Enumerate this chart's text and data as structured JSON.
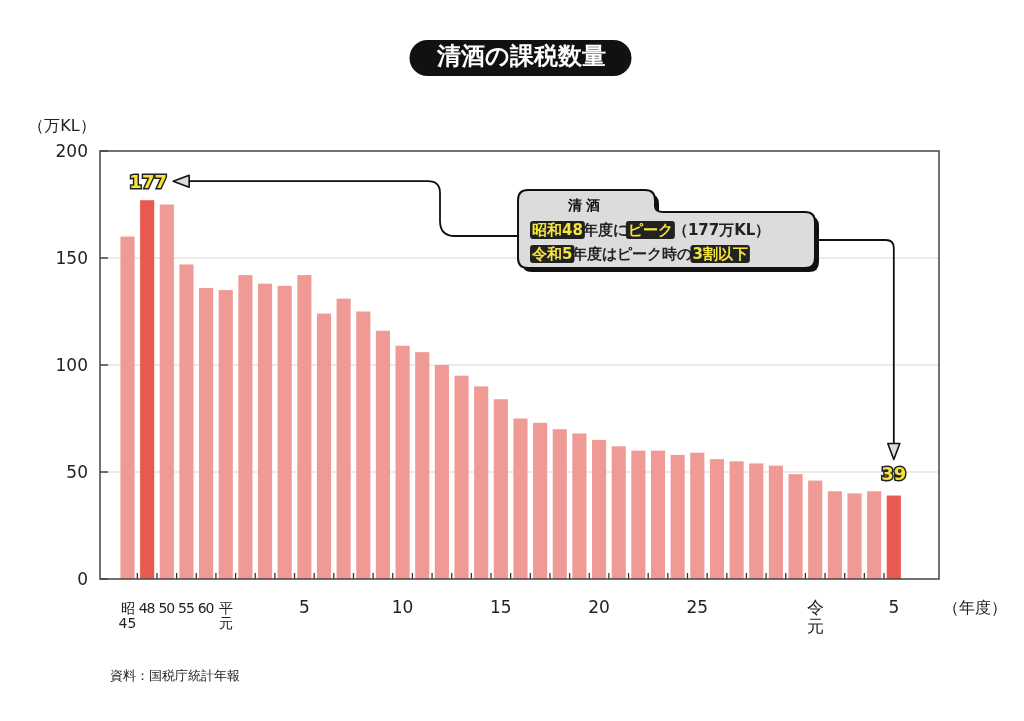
{
  "chart_data": {
    "type": "bar",
    "title": "清酒の課税数量",
    "ylabel": "（万KL）",
    "xlabel": "（年度）",
    "categories": [
      "昭45",
      "48",
      "50",
      "55",
      "60",
      "平元",
      null,
      null,
      null,
      "5",
      null,
      null,
      null,
      null,
      "10",
      null,
      null,
      null,
      null,
      "15",
      null,
      null,
      null,
      null,
      "20",
      null,
      null,
      null,
      null,
      "25",
      null,
      null,
      null,
      null,
      null,
      "令元",
      null,
      null,
      null,
      "5"
    ],
    "values": [
      160,
      177,
      175,
      147,
      136,
      135,
      142,
      138,
      137,
      142,
      124,
      131,
      125,
      116,
      109,
      106,
      100,
      95,
      90,
      84,
      75,
      73,
      70,
      68,
      65,
      62,
      60,
      60,
      58,
      59,
      56,
      55,
      54,
      53,
      49,
      46,
      41,
      40,
      41,
      39
    ],
    "colors": [
      "#f09a95",
      "#e85a50",
      "#f09a95",
      "#f09a95",
      "#f09a95",
      "#f09a95",
      "#f09a95",
      "#f09a95",
      "#f09a95",
      "#f09a95",
      "#f09a95",
      "#f09a95",
      "#f09a95",
      "#f09a95",
      "#f09a95",
      "#f09a95",
      "#f09a95",
      "#f09a95",
      "#f09a95",
      "#f09a95",
      "#f09a95",
      "#f09a95",
      "#f09a95",
      "#f09a95",
      "#f09a95",
      "#f09a95",
      "#f09a95",
      "#f09a95",
      "#f09a95",
      "#f09a95",
      "#f09a95",
      "#f09a95",
      "#f09a95",
      "#f09a95",
      "#f09a95",
      "#f09a95",
      "#f09a95",
      "#f09a95",
      "#f09a95",
      "#e85a50"
    ],
    "value_labels": [
      null,
      "177",
      null,
      null,
      null,
      null,
      null,
      null,
      null,
      null,
      null,
      null,
      null,
      null,
      null,
      null,
      null,
      null,
      null,
      null,
      null,
      null,
      null,
      null,
      null,
      null,
      null,
      null,
      null,
      null,
      null,
      null,
      null,
      null,
      null,
      null,
      null,
      null,
      null,
      "39"
    ],
    "ylim": [
      0,
      200
    ],
    "yticks": [
      0,
      50,
      100,
      150,
      200
    ],
    "grid": "y",
    "annotations": [
      "資料：国税庁統計年報",
      "清 酒",
      "**昭和48**年度に**ピーク**（177万KL）",
      "**令和5**年度はピーク時の**3割以下**"
    ]
  }
}
